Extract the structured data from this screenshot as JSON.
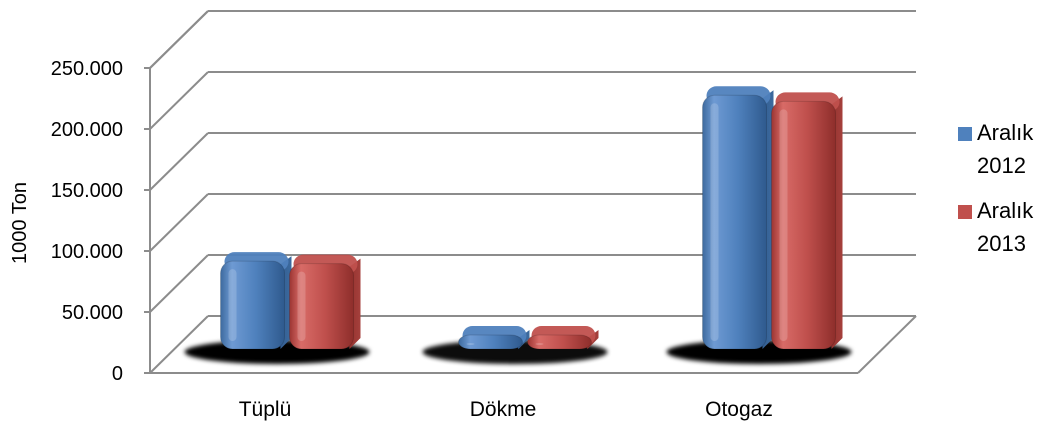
{
  "chart_data": {
    "type": "bar",
    "categories": [
      "Tüplü",
      "Dökme",
      "Otogaz"
    ],
    "series": [
      {
        "name": "Aralık 2012",
        "legend_lines": [
          "Aralık",
          "2012"
        ],
        "color": "#4F81BD",
        "values": [
          72000,
          10000,
          208000
        ]
      },
      {
        "name": "Aralık 2013",
        "legend_lines": [
          "Aralık",
          "2013"
        ],
        "color": "#C0504D",
        "values": [
          70000,
          9000,
          203000
        ]
      }
    ],
    "ylabel": "1000 Ton",
    "xlabel": "",
    "title": "",
    "ylim": [
      0,
      250000
    ],
    "yticks": [
      {
        "value": 0,
        "label": "0"
      },
      {
        "value": 50000,
        "label": "50.000"
      },
      {
        "value": 100000,
        "label": "100.000"
      },
      {
        "value": 150000,
        "label": "150.000"
      },
      {
        "value": 200000,
        "label": "200.000"
      },
      {
        "value": 250000,
        "label": "250.000"
      }
    ],
    "grid": true,
    "legend_position": "right",
    "style": "3d-clustered-column"
  }
}
